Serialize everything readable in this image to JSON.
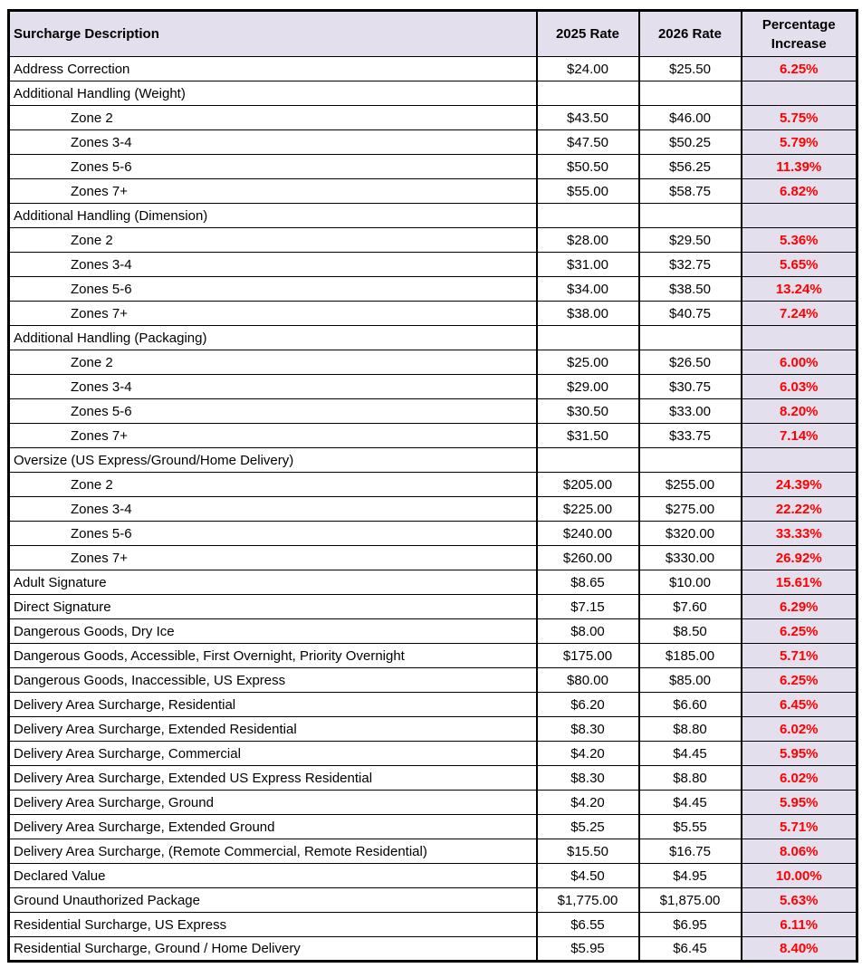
{
  "table": {
    "columns": [
      "Surcharge Description",
      "2025 Rate",
      "2026 Rate",
      "Percentage Increase"
    ],
    "colors": {
      "header_bg": "#E4DFEC",
      "pct_bg": "#E4DFEC",
      "pct_text": "#FF0000",
      "border": "#000000"
    },
    "rows": [
      {
        "type": "item",
        "description": "Address Correction",
        "rate_2025": "$24.00",
        "rate_2026": "$25.50",
        "pct": "6.25%"
      },
      {
        "type": "section",
        "description": "Additional Handling (Weight)",
        "rate_2025": "",
        "rate_2026": "",
        "pct": ""
      },
      {
        "type": "zone",
        "description": "Zone 2",
        "rate_2025": "$43.50",
        "rate_2026": "$46.00",
        "pct": "5.75%"
      },
      {
        "type": "zone",
        "description": "Zones 3-4",
        "rate_2025": "$47.50",
        "rate_2026": "$50.25",
        "pct": "5.79%"
      },
      {
        "type": "zone",
        "description": "Zones 5-6",
        "rate_2025": "$50.50",
        "rate_2026": "$56.25",
        "pct": "11.39%"
      },
      {
        "type": "zone",
        "description": "Zones 7+",
        "rate_2025": "$55.00",
        "rate_2026": "$58.75",
        "pct": "6.82%"
      },
      {
        "type": "section",
        "description": "Additional Handling (Dimension)",
        "rate_2025": "",
        "rate_2026": "",
        "pct": ""
      },
      {
        "type": "zone",
        "description": "Zone 2",
        "rate_2025": "$28.00",
        "rate_2026": "$29.50",
        "pct": "5.36%"
      },
      {
        "type": "zone",
        "description": "Zones 3-4",
        "rate_2025": "$31.00",
        "rate_2026": "$32.75",
        "pct": "5.65%"
      },
      {
        "type": "zone",
        "description": "Zones 5-6",
        "rate_2025": "$34.00",
        "rate_2026": "$38.50",
        "pct": "13.24%"
      },
      {
        "type": "zone",
        "description": "Zones 7+",
        "rate_2025": "$38.00",
        "rate_2026": "$40.75",
        "pct": "7.24%"
      },
      {
        "type": "section",
        "description": "Additional Handling (Packaging)",
        "rate_2025": "",
        "rate_2026": "",
        "pct": ""
      },
      {
        "type": "zone",
        "description": "Zone 2",
        "rate_2025": "$25.00",
        "rate_2026": "$26.50",
        "pct": "6.00%"
      },
      {
        "type": "zone",
        "description": "Zones 3-4",
        "rate_2025": "$29.00",
        "rate_2026": "$30.75",
        "pct": "6.03%"
      },
      {
        "type": "zone",
        "description": "Zones 5-6",
        "rate_2025": "$30.50",
        "rate_2026": "$33.00",
        "pct": "8.20%"
      },
      {
        "type": "zone",
        "description": "Zones 7+",
        "rate_2025": "$31.50",
        "rate_2026": "$33.75",
        "pct": "7.14%"
      },
      {
        "type": "section",
        "description": "Oversize (US Express/Ground/Home Delivery)",
        "rate_2025": "",
        "rate_2026": "",
        "pct": ""
      },
      {
        "type": "zone",
        "description": "Zone 2",
        "rate_2025": "$205.00",
        "rate_2026": "$255.00",
        "pct": "24.39%"
      },
      {
        "type": "zone",
        "description": "Zones 3-4",
        "rate_2025": "$225.00",
        "rate_2026": "$275.00",
        "pct": "22.22%"
      },
      {
        "type": "zone",
        "description": "Zones 5-6",
        "rate_2025": "$240.00",
        "rate_2026": "$320.00",
        "pct": "33.33%"
      },
      {
        "type": "zone",
        "description": "Zones 7+",
        "rate_2025": "$260.00",
        "rate_2026": "$330.00",
        "pct": "26.92%"
      },
      {
        "type": "item",
        "description": "Adult Signature",
        "rate_2025": "$8.65",
        "rate_2026": "$10.00",
        "pct": "15.61%"
      },
      {
        "type": "item",
        "description": "Direct Signature",
        "rate_2025": "$7.15",
        "rate_2026": "$7.60",
        "pct": "6.29%"
      },
      {
        "type": "item",
        "description": "Dangerous Goods, Dry Ice",
        "rate_2025": "$8.00",
        "rate_2026": "$8.50",
        "pct": "6.25%"
      },
      {
        "type": "item",
        "description": "Dangerous Goods, Accessible, First Overnight, Priority Overnight",
        "rate_2025": "$175.00",
        "rate_2026": "$185.00",
        "pct": "5.71%"
      },
      {
        "type": "item",
        "description": "Dangerous Goods, Inaccessible, US Express",
        "rate_2025": "$80.00",
        "rate_2026": "$85.00",
        "pct": "6.25%"
      },
      {
        "type": "item",
        "description": "Delivery Area Surcharge, Residential",
        "rate_2025": "$6.20",
        "rate_2026": "$6.60",
        "pct": "6.45%"
      },
      {
        "type": "item",
        "description": "Delivery Area Surcharge, Extended Residential",
        "rate_2025": "$8.30",
        "rate_2026": "$8.80",
        "pct": "6.02%"
      },
      {
        "type": "item",
        "description": "Delivery Area Surcharge, Commercial",
        "rate_2025": "$4.20",
        "rate_2026": "$4.45",
        "pct": "5.95%"
      },
      {
        "type": "item",
        "description": "Delivery Area Surcharge, Extended US Express Residential",
        "rate_2025": "$8.30",
        "rate_2026": "$8.80",
        "pct": "6.02%"
      },
      {
        "type": "item",
        "description": "Delivery Area Surcharge, Ground",
        "rate_2025": "$4.20",
        "rate_2026": "$4.45",
        "pct": "5.95%"
      },
      {
        "type": "item",
        "description": "Delivery Area Surcharge, Extended Ground",
        "rate_2025": "$5.25",
        "rate_2026": "$5.55",
        "pct": "5.71%"
      },
      {
        "type": "item",
        "description": "Delivery Area Surcharge, (Remote Commercial, Remote Residential)",
        "rate_2025": "$15.50",
        "rate_2026": "$16.75",
        "pct": "8.06%"
      },
      {
        "type": "item",
        "description": "Declared Value",
        "rate_2025": "$4.50",
        "rate_2026": "$4.95",
        "pct": "10.00%"
      },
      {
        "type": "item",
        "description": "Ground Unauthorized Package",
        "rate_2025": "$1,775.00",
        "rate_2026": "$1,875.00",
        "pct": "5.63%"
      },
      {
        "type": "item",
        "description": "Residential Surcharge, US Express",
        "rate_2025": "$6.55",
        "rate_2026": "$6.95",
        "pct": "6.11%"
      },
      {
        "type": "item",
        "description": "Residential Surcharge, Ground / Home Delivery",
        "rate_2025": "$5.95",
        "rate_2026": "$6.45",
        "pct": "8.40%"
      }
    ]
  }
}
